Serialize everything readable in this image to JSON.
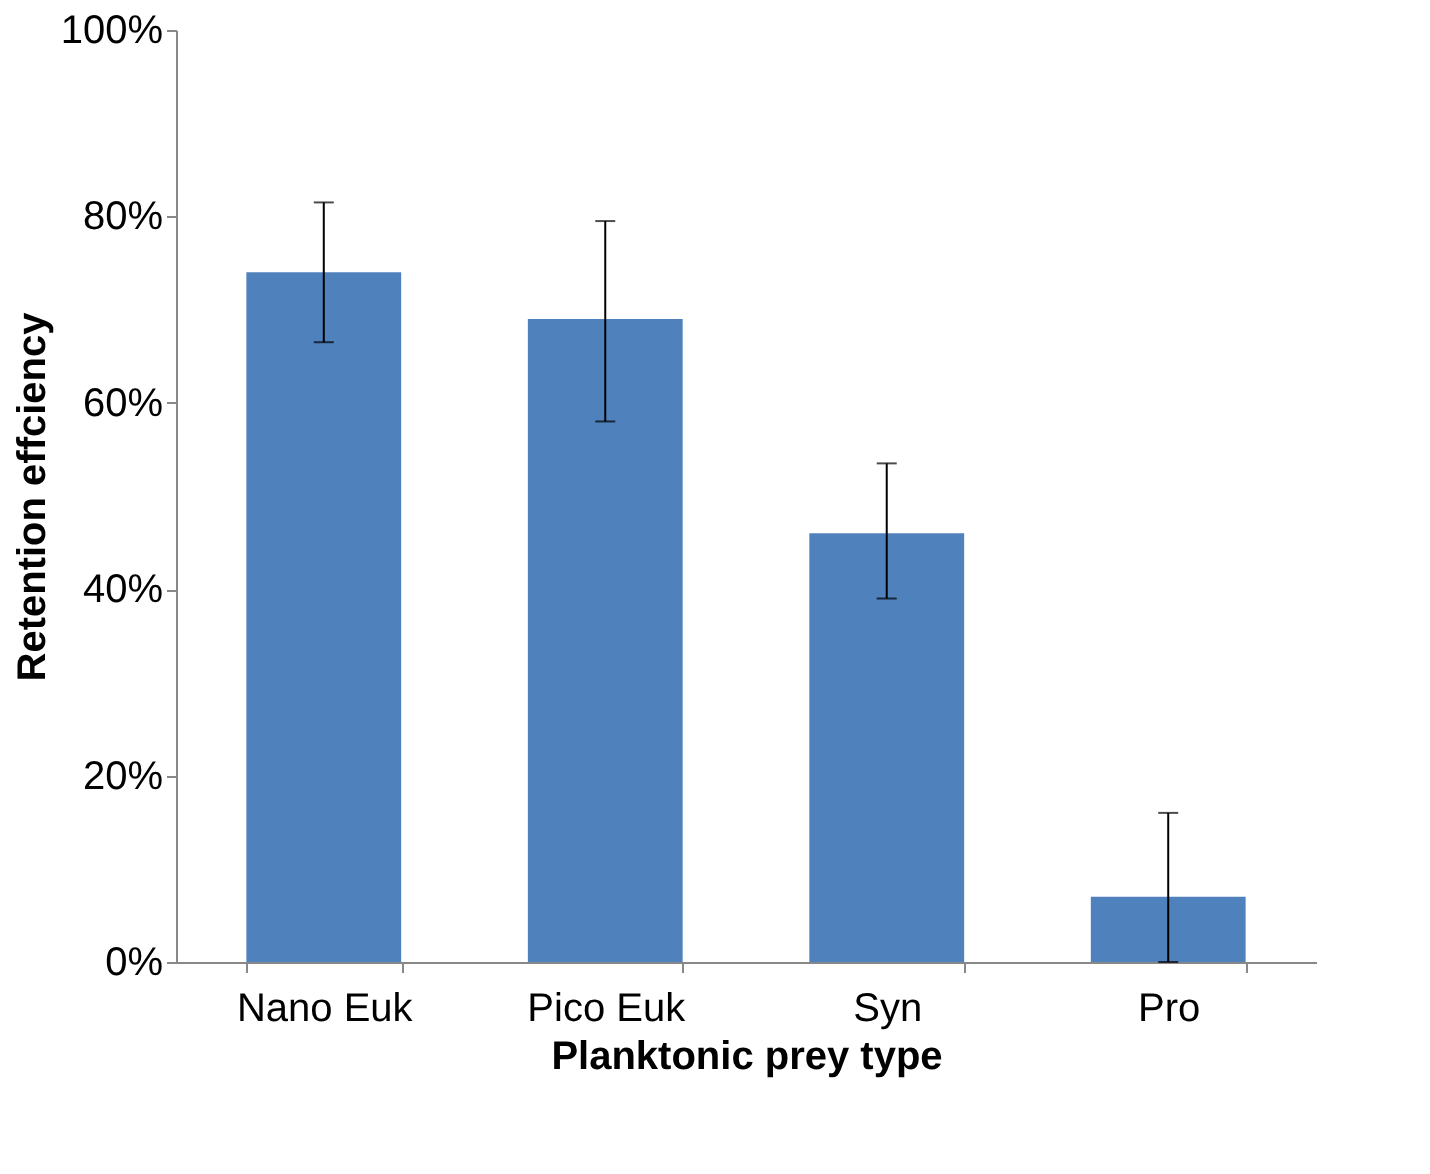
{
  "chart_data": {
    "type": "bar",
    "xlabel": "Planktonic prey type",
    "ylabel": "Retention effciency",
    "categories": [
      "Nano Euk",
      "Pico Euk",
      "Syn",
      "Pro"
    ],
    "values": [
      74,
      69,
      46,
      7
    ],
    "errors": [
      [
        66.5,
        81.5
      ],
      [
        58,
        79.5
      ],
      [
        39,
        53.5
      ],
      [
        0,
        16
      ]
    ],
    "color": "#4f81bd",
    "ylim": [
      0,
      100
    ],
    "yticks": [
      {
        "value": 0,
        "label": "0%"
      },
      {
        "value": 20,
        "label": "20%"
      },
      {
        "value": 40,
        "label": "40%"
      },
      {
        "value": 60,
        "label": "60%"
      },
      {
        "value": 80,
        "label": "80%"
      },
      {
        "value": 100,
        "label": "100%"
      }
    ],
    "grid": false
  }
}
